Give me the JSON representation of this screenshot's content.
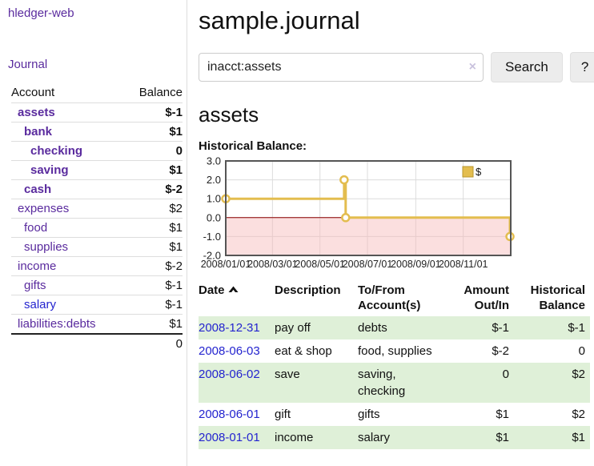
{
  "colors": {
    "link_purple": "#5a2b9e",
    "link_blue": "#2424cf",
    "negative_strong": "#8e1414",
    "negative_soft": "#b87070",
    "row_shade_green": "#dff0d8",
    "chart_line_gold": "#e3bd4f",
    "chart_negative_pink": "#f9dcdc",
    "chart_zero_line": "#8b0000"
  },
  "sidebar": {
    "brand": "hledger-web",
    "nav": {
      "journal": "Journal"
    },
    "accounts": {
      "headers": {
        "account": "Account",
        "balance": "Balance"
      },
      "rows": [
        {
          "name": "assets",
          "depth": 0,
          "bold": true,
          "balance": "$-1",
          "balance_style": "neg",
          "link_style": "purple"
        },
        {
          "name": "bank",
          "depth": 1,
          "bold": true,
          "balance": "$1",
          "balance_style": "pos",
          "link_style": "purple"
        },
        {
          "name": "checking",
          "depth": 2,
          "bold": true,
          "balance": "0",
          "balance_style": "pos",
          "link_style": "purple"
        },
        {
          "name": "saving",
          "depth": 2,
          "bold": true,
          "balance": "$1",
          "balance_style": "pos",
          "link_style": "purple"
        },
        {
          "name": "cash",
          "depth": 1,
          "bold": true,
          "balance": "$-2",
          "balance_style": "neg",
          "link_style": "purple"
        },
        {
          "name": "expenses",
          "depth": 0,
          "bold": false,
          "balance": "$2",
          "balance_style": "pos",
          "link_style": "purple"
        },
        {
          "name": "food",
          "depth": 1,
          "bold": false,
          "balance": "$1",
          "balance_style": "pos",
          "link_style": "purple"
        },
        {
          "name": "supplies",
          "depth": 1,
          "bold": false,
          "balance": "$1",
          "balance_style": "pos",
          "link_style": "purple"
        },
        {
          "name": "income",
          "depth": 0,
          "bold": false,
          "balance": "$-2",
          "balance_style": "negsoft",
          "link_style": "purple"
        },
        {
          "name": "gifts",
          "depth": 1,
          "bold": false,
          "balance": "$-1",
          "balance_style": "negsoft",
          "link_style": "purple"
        },
        {
          "name": "salary",
          "depth": 1,
          "bold": false,
          "balance": "$-1",
          "balance_style": "negsoft",
          "link_style": "blue"
        },
        {
          "name": "liabilities:debts",
          "depth": 0,
          "bold": false,
          "balance": "$1",
          "balance_style": "pos",
          "link_style": "purple"
        }
      ],
      "total": "0"
    }
  },
  "main": {
    "title": "sample.journal",
    "search": {
      "value": "inacct:assets",
      "clear_icon": "×",
      "button": "Search",
      "help": "?"
    },
    "heading": "assets",
    "chart_title": "Historical Balance:"
  },
  "chart_data": {
    "type": "line",
    "step": true,
    "title": "Historical Balance:",
    "series": [
      {
        "name": "$",
        "points": [
          {
            "date": "2008-01-01",
            "value": 1
          },
          {
            "date": "2008-06-01",
            "value": 2
          },
          {
            "date": "2008-06-03",
            "value": 0
          },
          {
            "date": "2008-12-31",
            "value": -1
          }
        ]
      }
    ],
    "x_range": [
      "2008-01-01",
      "2009-01-01"
    ],
    "x_ticks": [
      {
        "label": "2008/01/01",
        "date": "2008-01-01"
      },
      {
        "label": "2008/03/01",
        "date": "2008-03-01"
      },
      {
        "label": "2008/05/01",
        "date": "2008-05-01"
      },
      {
        "label": "2008/07/01",
        "date": "2008-07-01"
      },
      {
        "label": "2008/09/01",
        "date": "2008-09-01"
      },
      {
        "label": "2008/11/01",
        "date": "2008-11-01"
      }
    ],
    "y_ticks": [
      {
        "label": "3.0",
        "value": 3
      },
      {
        "label": "2.0",
        "value": 2
      },
      {
        "label": "1.0",
        "value": 1
      },
      {
        "label": "0.0",
        "value": 0
      },
      {
        "label": "-1.0",
        "value": -1
      },
      {
        "label": "-2.0",
        "value": -2
      }
    ],
    "ylim": [
      -2,
      3
    ],
    "legend": {
      "label": "$",
      "position": "top-right"
    },
    "grid": true,
    "styles": {
      "line_color": "#e3bd4f",
      "marker_fill": "#ffffff",
      "negative_region_fill": "rgba(247,183,183,0.45)",
      "zero_line_color": "#8b0000",
      "grid_color": "#dcdcdc",
      "border_color": "#555555"
    }
  },
  "register": {
    "headers": [
      {
        "label": "Date",
        "sort": "asc",
        "align": "left"
      },
      {
        "label": "Description",
        "align": "left"
      },
      {
        "label": "To/From Account(s)",
        "align": "left"
      },
      {
        "label": "Amount Out/In",
        "align": "right"
      },
      {
        "label": "Historical Balance",
        "align": "right"
      }
    ],
    "rows": [
      {
        "date": "2008-12-31",
        "description": "pay off",
        "accounts": "debts",
        "amount": "$-1",
        "amount_neg": true,
        "balance": "$-1",
        "balance_neg": true,
        "shaded": true
      },
      {
        "date": "2008-06-03",
        "description": "eat & shop",
        "accounts": "food, supplies",
        "amount": "$-2",
        "amount_neg": true,
        "balance": "0",
        "balance_neg": false,
        "shaded": false
      },
      {
        "date": "2008-06-02",
        "description": "save",
        "accounts": "saving, checking",
        "amount": "0",
        "amount_neg": false,
        "balance": "$2",
        "balance_neg": false,
        "shaded": true
      },
      {
        "date": "2008-06-01",
        "description": "gift",
        "accounts": "gifts",
        "amount": "$1",
        "amount_neg": false,
        "balance": "$2",
        "balance_neg": false,
        "shaded": false
      },
      {
        "date": "2008-01-01",
        "description": "income",
        "accounts": "salary",
        "amount": "$1",
        "amount_neg": false,
        "balance": "$1",
        "balance_neg": false,
        "shaded": true
      }
    ]
  }
}
